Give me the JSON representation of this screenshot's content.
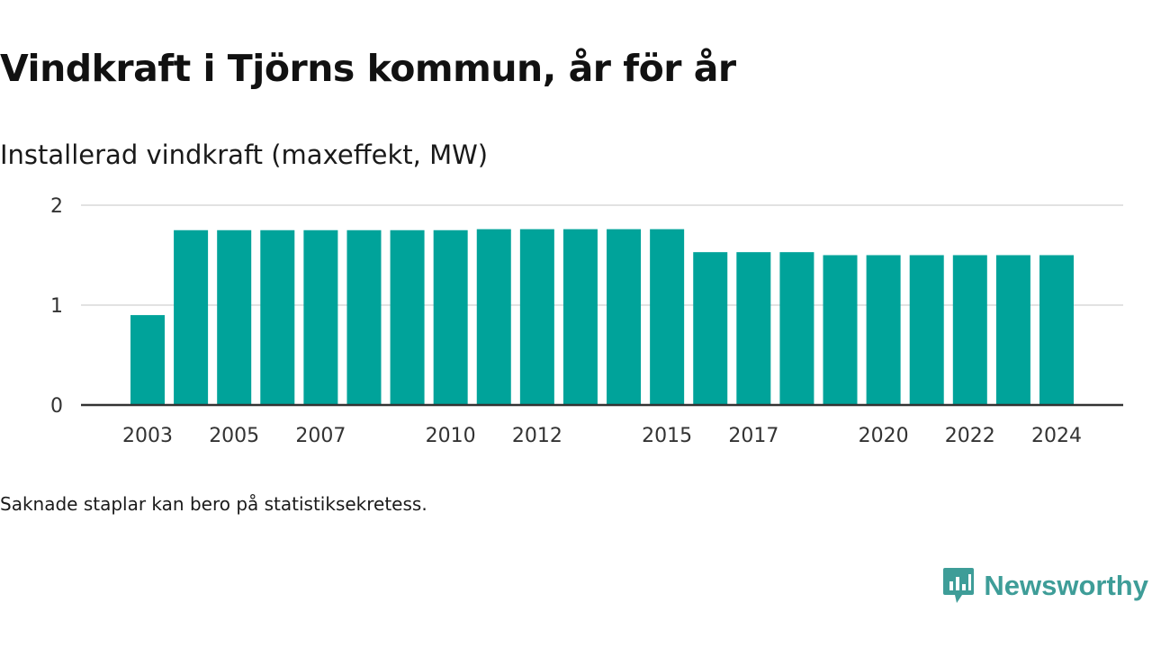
{
  "header": {
    "title": "Vindkraft i Tjörns kommun, år för år",
    "subtitle": "Installerad vindkraft (maxeffekt, MW)"
  },
  "footer": {
    "note": "Saknade staplar kan bero på statistiksekretess.",
    "brand": "Newsworthy"
  },
  "colors": {
    "bar": "#00a39a",
    "grid": "#d9d9d9",
    "axis": "#333333",
    "brand": "#3e9d98"
  },
  "icons": {
    "brand_logo": "bar-chart-speech-bubble-icon"
  },
  "chart_data": {
    "type": "bar",
    "title": "Vindkraft i Tjörns kommun, år för år",
    "ylabel": "Installerad vindkraft (maxeffekt, MW)",
    "xlabel": "",
    "categories": [
      "2003",
      "2004",
      "2005",
      "2006",
      "2007",
      "2008",
      "2009",
      "2010",
      "2011",
      "2012",
      "2013",
      "2014",
      "2015",
      "2016",
      "2017",
      "2018",
      "2019",
      "2020",
      "2021",
      "2022",
      "2023",
      "2024"
    ],
    "values": [
      0.9,
      1.75,
      1.75,
      1.75,
      1.75,
      1.75,
      1.75,
      1.75,
      1.76,
      1.76,
      1.76,
      1.76,
      1.76,
      1.53,
      1.53,
      1.53,
      1.5,
      1.5,
      1.5,
      1.5,
      1.5,
      1.5
    ],
    "xtick_labels": [
      "2003",
      "2005",
      "2007",
      "2010",
      "2012",
      "2015",
      "2017",
      "2020",
      "2022",
      "2024"
    ],
    "yticks": [
      0,
      1,
      2
    ],
    "ylim": [
      0,
      2
    ],
    "grid": true,
    "legend": false
  }
}
